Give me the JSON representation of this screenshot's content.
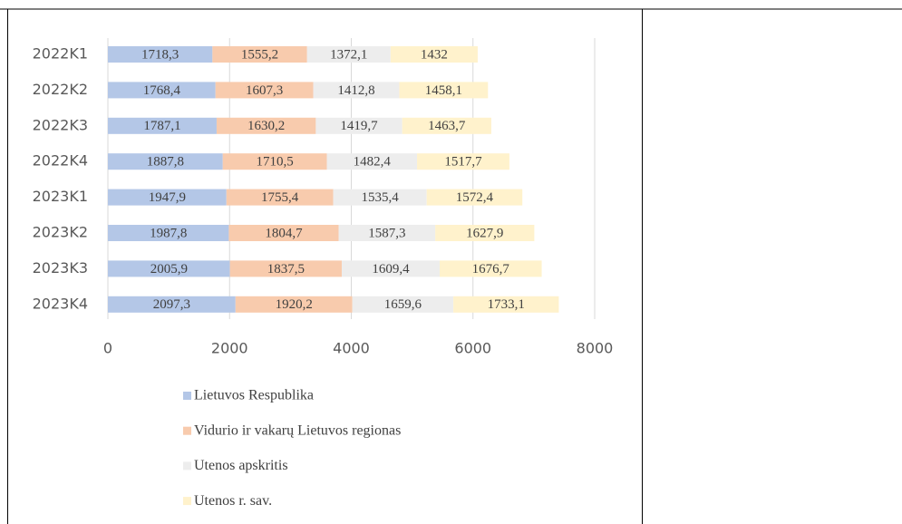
{
  "chart_data": {
    "type": "stacked-bar-horizontal",
    "categories": [
      "2022K1",
      "2022K2",
      "2022K3",
      "2022K4",
      "2023K1",
      "2023K2",
      "2023K3",
      "2023K4"
    ],
    "series": [
      {
        "name": "Lietuvos Respublika",
        "color": "#b4c7e7",
        "values": [
          1718.3,
          1768.4,
          1787.1,
          1887.8,
          1947.9,
          1987.8,
          2005.9,
          2097.3
        ],
        "value_labels": [
          "1718,3",
          "1768,4",
          "1787,1",
          "1887,8",
          "1947,9",
          "1987,8",
          "2005,9",
          "2097,3"
        ]
      },
      {
        "name": "Vidurio ir vakarų Lietuvos regionas",
        "color": "#f8cbad",
        "values": [
          1555.2,
          1607.3,
          1630.2,
          1710.5,
          1755.4,
          1804.7,
          1837.5,
          1920.2
        ],
        "value_labels": [
          "1555,2",
          "1607,3",
          "1630,2",
          "1710,5",
          "1755,4",
          "1804,7",
          "1837,5",
          "1920,2"
        ]
      },
      {
        "name": "Utenos apskritis",
        "color": "#ededed",
        "values": [
          1372.1,
          1412.8,
          1419.7,
          1482.4,
          1535.4,
          1587.3,
          1609.4,
          1659.6
        ],
        "value_labels": [
          "1372,1",
          "1412,8",
          "1419,7",
          "1482,4",
          "1535,4",
          "1587,3",
          "1609,4",
          "1659,6"
        ]
      },
      {
        "name": "Utenos r. sav.",
        "color": "#fff2cc",
        "values": [
          1432,
          1458.1,
          1463.7,
          1517.7,
          1572.4,
          1627.9,
          1676.7,
          1733.1
        ],
        "value_labels": [
          "1432",
          "1458,1",
          "1463,7",
          "1517,7",
          "1572,4",
          "1627,9",
          "1676,7",
          "1733,1"
        ]
      }
    ],
    "xlim": [
      0,
      8000
    ],
    "xticks": [
      0,
      2000,
      4000,
      6000,
      8000
    ],
    "grid": true,
    "legend": "bottom"
  }
}
